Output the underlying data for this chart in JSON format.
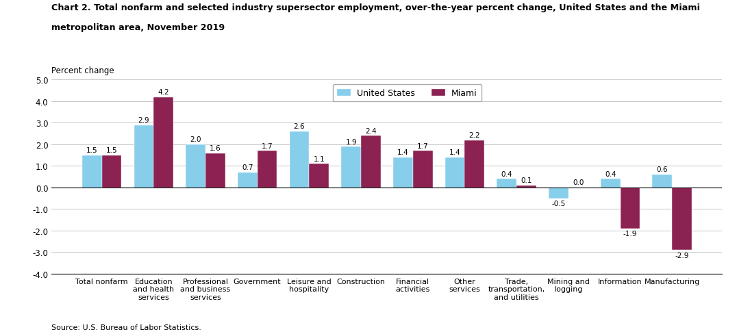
{
  "title_line1": "Chart 2. Total nonfarm and selected industry supersector employment, over-the-year percent change, United States and the Miami",
  "title_line2": "metropolitan area, November 2019",
  "ylabel": "Percent change",
  "source": "Source: U.S. Bureau of Labor Statistics.",
  "categories": [
    "Total nonfarm",
    "Education\nand health\nservices",
    "Professional\nand business\nservices",
    "Government",
    "Leisure and\nhospitality",
    "Construction",
    "Financial\nactivities",
    "Other\nservices",
    "Trade,\ntransportation,\nand utilities",
    "Mining and\nlogging",
    "Information",
    "Manufacturing"
  ],
  "us_values": [
    1.5,
    2.9,
    2.0,
    0.7,
    2.6,
    1.9,
    1.4,
    1.4,
    0.4,
    -0.5,
    0.4,
    0.6
  ],
  "miami_values": [
    1.5,
    4.2,
    1.6,
    1.7,
    1.1,
    2.4,
    1.7,
    2.2,
    0.1,
    0.0,
    -1.9,
    -2.9
  ],
  "us_color": "#87CEEB",
  "miami_color": "#8B2252",
  "ylim": [
    -4.0,
    5.0
  ],
  "yticks": [
    -4.0,
    -3.0,
    -2.0,
    -1.0,
    0.0,
    1.0,
    2.0,
    3.0,
    4.0,
    5.0
  ],
  "bar_width": 0.38,
  "legend_labels": [
    "United States",
    "Miami"
  ],
  "label_fontsize": 7.5,
  "tick_fontsize": 8.5,
  "cat_fontsize": 8
}
